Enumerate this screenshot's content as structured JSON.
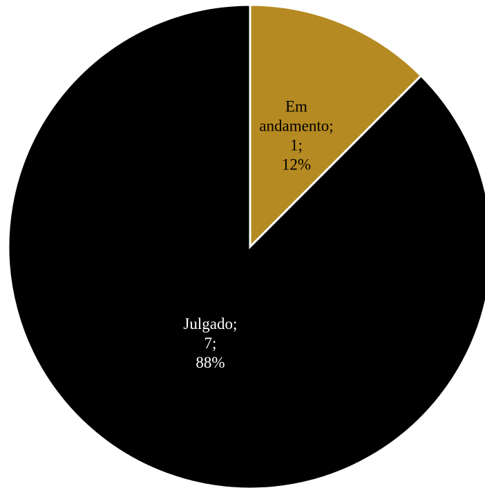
{
  "chart_data": {
    "type": "pie",
    "title": "",
    "start_angle_deg": 0,
    "direction": "clockwise",
    "slices": [
      {
        "label_lines": [
          "Em",
          "andamento;",
          "1;",
          "12%"
        ],
        "value": 1,
        "percent": 12,
        "color": "#B58A22",
        "text_color": "#000000"
      },
      {
        "label_lines": [
          "Julgado;",
          "7;",
          "88%"
        ],
        "value": 7,
        "percent": 88,
        "color": "#000000",
        "text_color": "#ffffff"
      }
    ]
  }
}
